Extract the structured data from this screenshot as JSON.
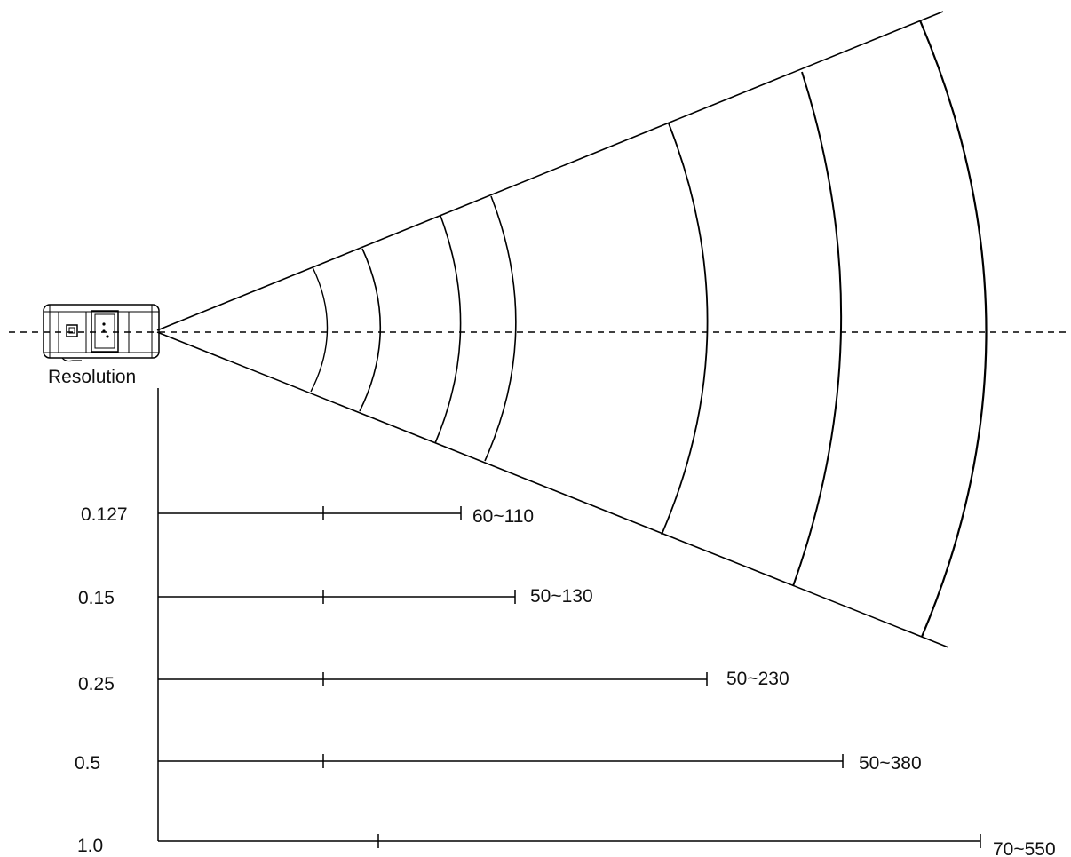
{
  "diagram": {
    "device_label": "Resolution",
    "resolutions": [
      {
        "resolution": "0.127",
        "range": "60~110"
      },
      {
        "resolution": "0.15",
        "range": "50~130"
      },
      {
        "resolution": "0.25",
        "range": "50~230"
      },
      {
        "resolution": "0.5",
        "range": "50~380"
      },
      {
        "resolution": "1.0",
        "range": "70~550"
      }
    ],
    "colors": {
      "line": "#000000",
      "text": "#111111",
      "background": "#ffffff"
    }
  }
}
